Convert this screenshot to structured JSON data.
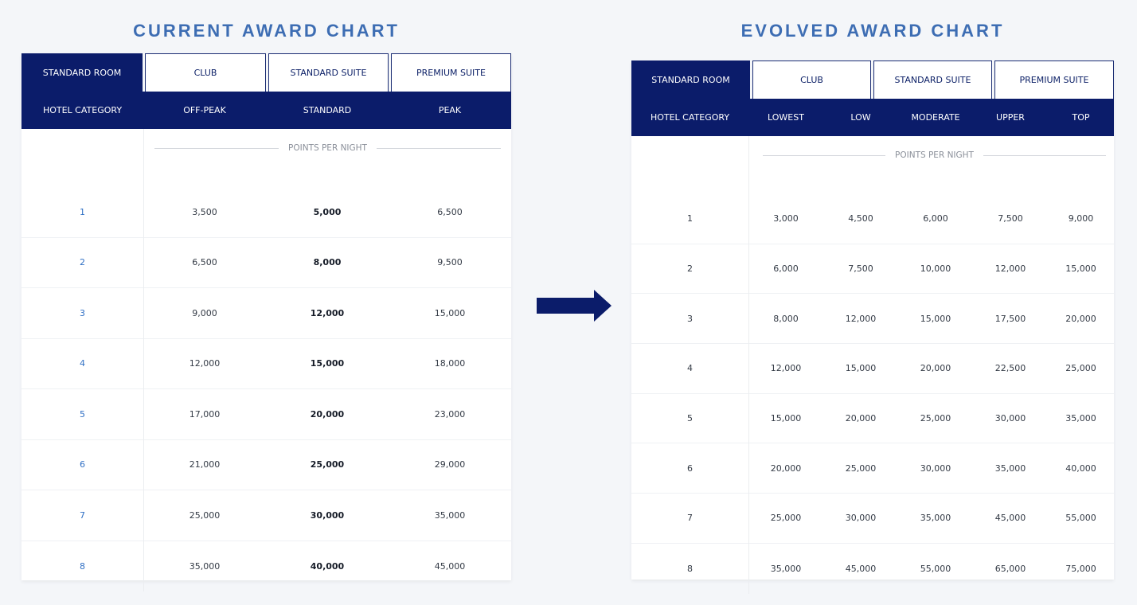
{
  "left_chart": {
    "title": "CURRENT AWARD CHART",
    "tabs": [
      "STANDARD ROOM",
      "CLUB",
      "STANDARD SUITE",
      "PREMIUM SUITE"
    ],
    "headers": [
      "HOTEL CATEGORY",
      "OFF-PEAK",
      "STANDARD",
      "PEAK"
    ],
    "points_label": "POINTS PER NIGHT",
    "rows": [
      [
        "1",
        "3,500",
        "5,000",
        "6,500"
      ],
      [
        "2",
        "6,500",
        "8,000",
        "9,500"
      ],
      [
        "3",
        "9,000",
        "12,000",
        "15,000"
      ],
      [
        "4",
        "12,000",
        "15,000",
        "18,000"
      ],
      [
        "5",
        "17,000",
        "20,000",
        "23,000"
      ],
      [
        "6",
        "21,000",
        "25,000",
        "29,000"
      ],
      [
        "7",
        "25,000",
        "30,000",
        "35,000"
      ],
      [
        "8",
        "35,000",
        "40,000",
        "45,000"
      ]
    ]
  },
  "right_chart": {
    "title": "EVOLVED AWARD CHART",
    "tabs": [
      "STANDARD ROOM",
      "CLUB",
      "STANDARD SUITE",
      "PREMIUM SUITE"
    ],
    "headers": [
      "HOTEL CATEGORY",
      "LOWEST",
      "LOW",
      "MODERATE",
      "UPPER",
      "TOP"
    ],
    "points_label": "POINTS PER NIGHT",
    "rows": [
      [
        "1",
        "3,000",
        "4,500",
        "6,000",
        "7,500",
        "9,000"
      ],
      [
        "2",
        "6,000",
        "7,500",
        "10,000",
        "12,000",
        "15,000"
      ],
      [
        "3",
        "8,000",
        "12,000",
        "15,000",
        "17,500",
        "20,000"
      ],
      [
        "4",
        "12,000",
        "15,000",
        "20,000",
        "22,500",
        "25,000"
      ],
      [
        "5",
        "15,000",
        "20,000",
        "25,000",
        "30,000",
        "35,000"
      ],
      [
        "6",
        "20,000",
        "25,000",
        "30,000",
        "35,000",
        "40,000"
      ],
      [
        "7",
        "25,000",
        "30,000",
        "35,000",
        "45,000",
        "55,000"
      ],
      [
        "8",
        "35,000",
        "45,000",
        "55,000",
        "65,000",
        "75,000"
      ]
    ]
  },
  "arrow_icon": "right-arrow-icon",
  "colors": {
    "title": "#3d6db3",
    "navy": "#0b1c6a",
    "category_link": "#2f6fc4",
    "background": "#f4f6f9"
  }
}
